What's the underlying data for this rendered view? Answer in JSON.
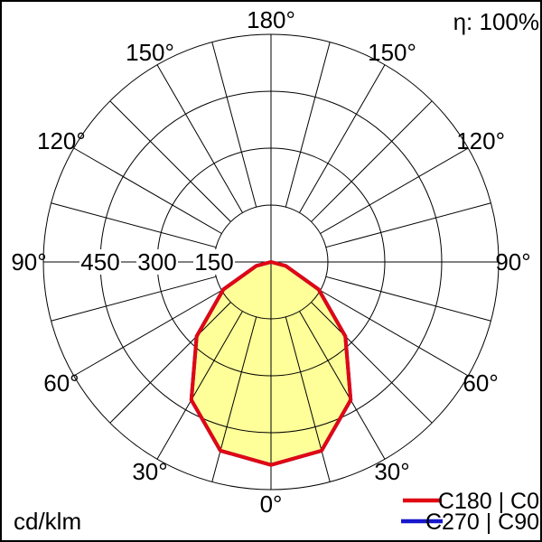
{
  "diagram": {
    "efficiency_label": "η: 100%",
    "unit_label": "cd/klm"
  },
  "legend": {
    "items": [
      {
        "label": "C180 | C0",
        "color": "#e00713"
      },
      {
        "label": "C270 | C90",
        "color": "#1717cb"
      }
    ]
  },
  "chart_data": {
    "type": "polar_photometric_intensity",
    "unit": "cd/klm",
    "efficiency_percent": 100,
    "angle_ticks_deg": [
      0,
      30,
      60,
      90,
      120,
      150,
      180
    ],
    "angle_tick_labels": [
      "0°",
      "30°",
      "60°",
      "90°",
      "120°",
      "150°",
      "180°"
    ],
    "spoke_step_deg": 15,
    "radial_tick_values": [
      150,
      300,
      450
    ],
    "radial_axis_max": 600,
    "grid_on": true,
    "legend_position": "bottom-right",
    "series": [
      {
        "name": "C180 | C0",
        "color": "#e00713",
        "fill_color": "#ffff99",
        "gamma_deg": [
          -90,
          -75,
          -60,
          -45,
          -30,
          -15,
          0,
          15,
          30,
          45,
          60,
          75,
          90
        ],
        "intensity_cd_per_klm": [
          0,
          40,
          145,
          277,
          420,
          515,
          535,
          515,
          420,
          277,
          145,
          40,
          0
        ]
      },
      {
        "name": "C270 | C90",
        "color": "#1717cb",
        "fill_color": null,
        "gamma_deg": [
          -90,
          -75,
          -60,
          -45,
          -30,
          -15,
          0,
          15,
          30,
          45,
          60,
          75,
          90
        ],
        "intensity_cd_per_klm": [
          0,
          40,
          145,
          277,
          420,
          515,
          535,
          515,
          420,
          277,
          145,
          40,
          0
        ]
      }
    ]
  }
}
